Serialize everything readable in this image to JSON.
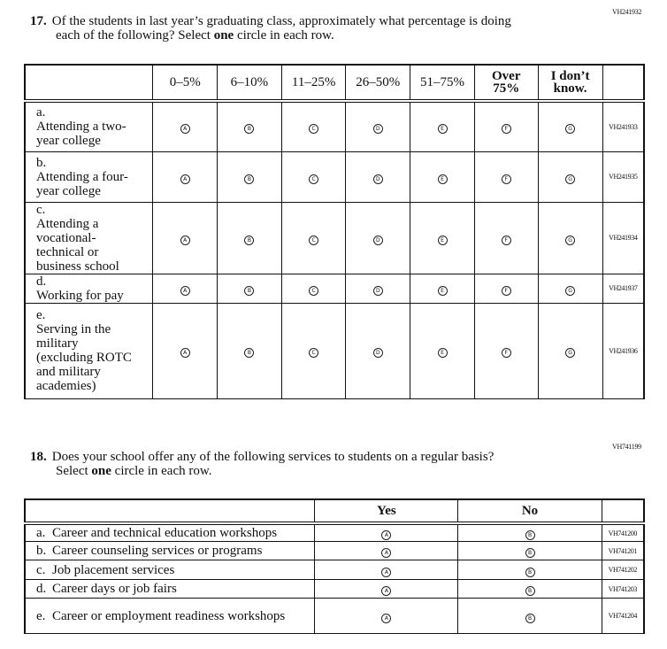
{
  "q17": {
    "code": "VH241932",
    "number": "17.",
    "text": "Of the students in last year’s graduating class, approximately what percentage is doing",
    "text2_pre": "each of the following? Select ",
    "text2_bold": "one",
    "text2_post": " circle in each row.",
    "columns": [
      "0–5%",
      "6–10%",
      "11–25%",
      "26–50%",
      "51–75%",
      "Over 75%",
      "I don’t know."
    ],
    "options": [
      "A",
      "B",
      "C",
      "D",
      "E",
      "F",
      "G"
    ],
    "rows": [
      {
        "letter": "a.",
        "label": "Attending a two-year college",
        "code": "VH241933"
      },
      {
        "letter": "b.",
        "label": "Attending a four-year college",
        "code": "VH241935"
      },
      {
        "letter": "c.",
        "label": "Attending a vocational-technical or business school",
        "code": "VH241934"
      },
      {
        "letter": "d.",
        "label": "Working for pay",
        "code": "VH241937"
      },
      {
        "letter": "e.",
        "label": "Serving in the military (excluding ROTC and military academies)",
        "code": "VH241936"
      }
    ]
  },
  "q18": {
    "code": "VH741199",
    "number": "18.",
    "text": "Does your school offer any of the following services to students on a regular basis?",
    "text2_pre": "Select ",
    "text2_bold": "one",
    "text2_post": " circle in each row.",
    "columns": [
      "Yes",
      "No"
    ],
    "options": [
      "A",
      "B"
    ],
    "rows": [
      {
        "letter": "a.",
        "label": "Career and technical education workshops",
        "code": "VH741200"
      },
      {
        "letter": "b.",
        "label": "Career counseling services or programs",
        "code": "VH741201"
      },
      {
        "letter": "c.",
        "label": "Job placement services",
        "code": "VH741202"
      },
      {
        "letter": "d.",
        "label": "Career days or job fairs",
        "code": "VH741203"
      },
      {
        "letter": "e.",
        "label": "Career or employment readiness workshops",
        "code": "VH741204"
      }
    ]
  }
}
